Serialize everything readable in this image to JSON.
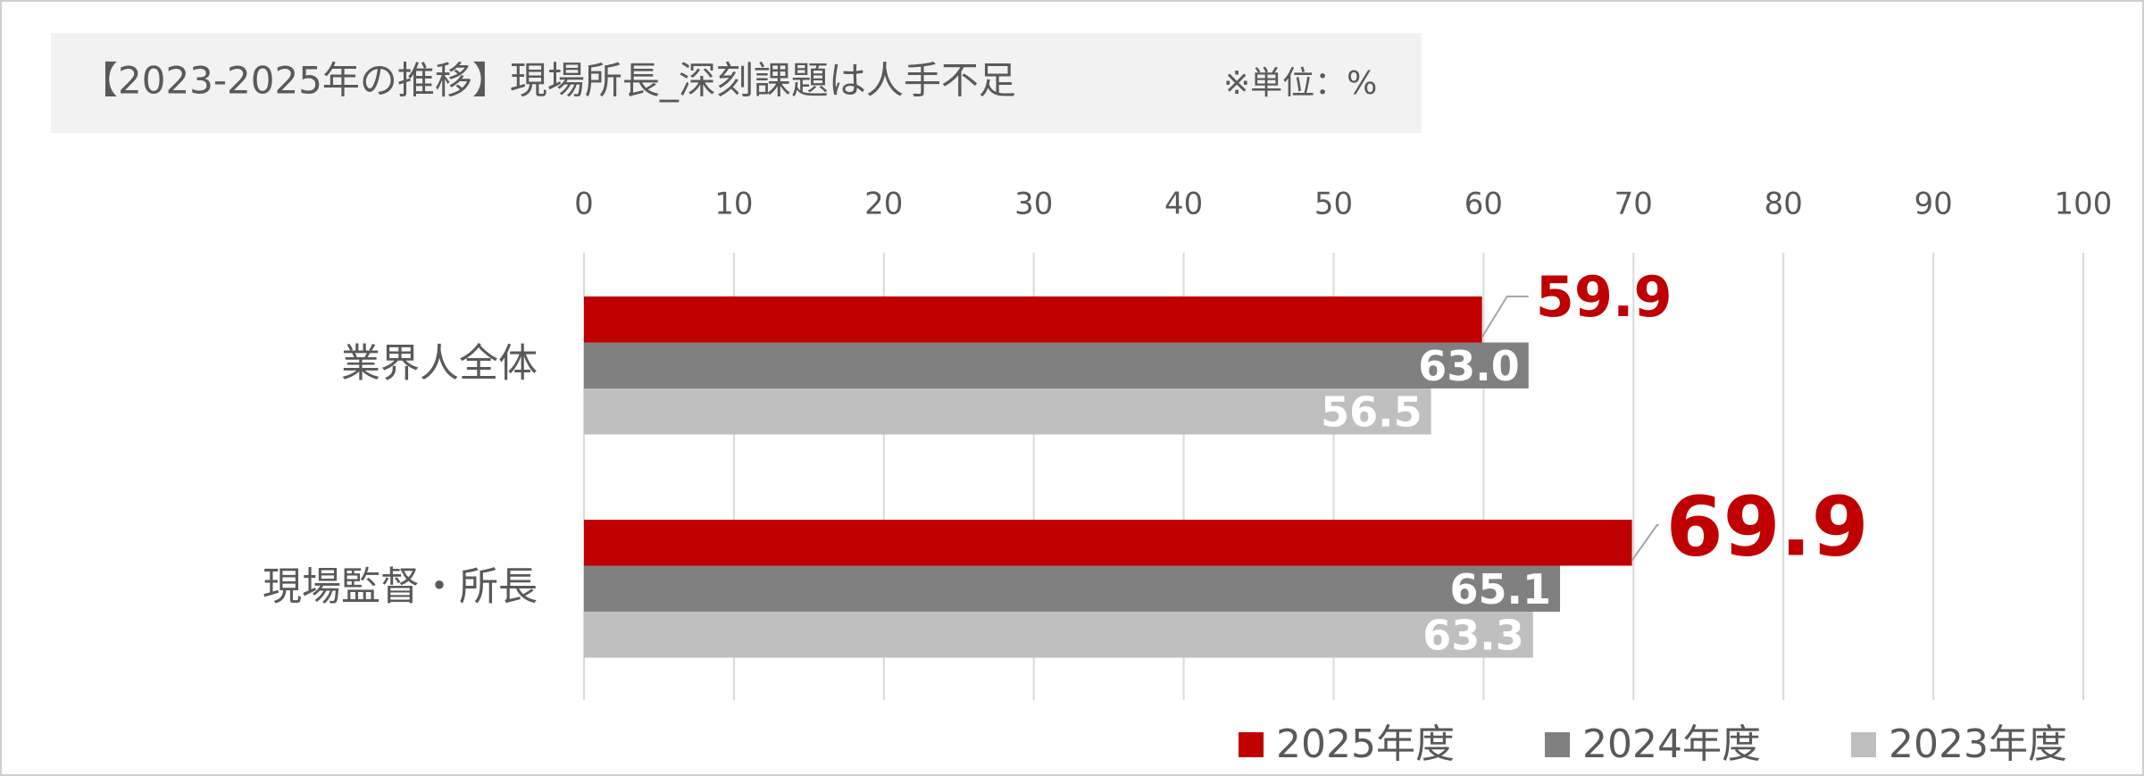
{
  "chart_data": {
    "type": "bar",
    "orientation": "horizontal",
    "title": "【2023-2025年の推移】現場所長_深刻課題は人手不足",
    "subtitle": "※単位：%",
    "categories": [
      "業界人全体",
      "現場監督・所長"
    ],
    "series": [
      {
        "name": "2025年度",
        "color": "#c00000",
        "values": [
          59.9,
          69.9
        ],
        "value_labels": [
          "59.9",
          "69.9"
        ]
      },
      {
        "name": "2024年度",
        "color": "#808080",
        "values": [
          63,
          65.1
        ],
        "value_labels": [
          "63.0",
          "65.1"
        ]
      },
      {
        "name": "2023年度",
        "color": "#bfbfbf",
        "values": [
          56.5,
          63.3
        ],
        "value_labels": [
          "56.5",
          "63.3"
        ]
      }
    ],
    "xlim": [
      0,
      100
    ],
    "xticks": [
      0,
      10,
      20,
      30,
      40,
      50,
      60,
      70,
      80,
      90,
      100
    ],
    "grid": true
  }
}
